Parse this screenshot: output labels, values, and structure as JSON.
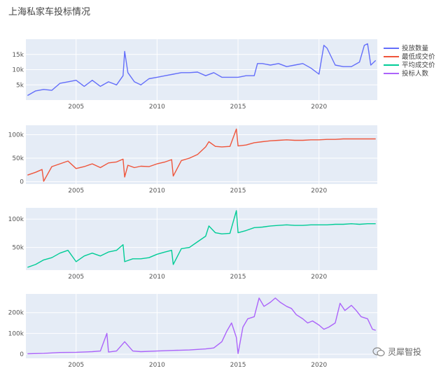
{
  "title": "上海私家车投标情况",
  "watermark": {
    "text": "灵犀智投",
    "icon": "wechat-icon"
  },
  "colors": {
    "plot_bg": "#e5ecf6",
    "grid": "#ffffff",
    "series": [
      "#636efa",
      "#ef553b",
      "#00cc96",
      "#ab63fa"
    ]
  },
  "chart_data": {
    "type": "line",
    "x_range": [
      2001.9,
      2023.6
    ],
    "x_ticks": [
      2005,
      2010,
      2015,
      2020
    ],
    "legend_placement": "top-right",
    "panels": [
      {
        "series": "投放数量",
        "ylim": [
          0,
          20000
        ],
        "y_ticks": [
          5000,
          10000,
          15000
        ],
        "y_tick_labels": [
          "5k",
          "10k",
          "15k"
        ],
        "x": [
          2002.0,
          2002.5,
          2003.0,
          2003.5,
          2004.0,
          2004.5,
          2005.0,
          2005.5,
          2006.0,
          2006.5,
          2007.0,
          2007.5,
          2007.9,
          2008.0,
          2008.2,
          2008.6,
          2009.0,
          2009.5,
          2010.0,
          2010.5,
          2011.0,
          2011.5,
          2012.0,
          2012.5,
          2013.0,
          2013.5,
          2014.0,
          2014.5,
          2015.0,
          2015.5,
          2016.0,
          2016.2,
          2016.5,
          2017.0,
          2017.5,
          2018.0,
          2018.5,
          2019.0,
          2019.5,
          2020.0,
          2020.3,
          2020.5,
          2021.0,
          2021.5,
          2022.0,
          2022.5,
          2022.8,
          2023.0,
          2023.2,
          2023.5
        ],
        "y": [
          1500,
          3000,
          3500,
          3200,
          5500,
          6000,
          6500,
          4500,
          6500,
          4500,
          6000,
          5000,
          8000,
          16000,
          9000,
          6000,
          5000,
          7000,
          7500,
          8000,
          8500,
          9000,
          9000,
          9200,
          8000,
          9000,
          7500,
          7500,
          7500,
          8000,
          8000,
          12000,
          12000,
          11500,
          12000,
          11000,
          11500,
          12000,
          10500,
          8500,
          18000,
          17000,
          11500,
          11000,
          11000,
          12500,
          18000,
          18500,
          11500,
          13000
        ]
      },
      {
        "series": "最低成交价",
        "ylim": [
          -5000,
          120000
        ],
        "y_ticks": [
          0,
          50000,
          100000
        ],
        "y_tick_labels": [
          "0",
          "50k",
          "100k"
        ],
        "x": [
          2002.0,
          2002.5,
          2002.9,
          2003.0,
          2003.5,
          2004.0,
          2004.5,
          2005.0,
          2005.5,
          2006.0,
          2006.5,
          2007.0,
          2007.5,
          2007.9,
          2008.0,
          2008.2,
          2008.6,
          2009.0,
          2009.5,
          2010.0,
          2010.5,
          2010.9,
          2011.0,
          2011.5,
          2012.0,
          2012.5,
          2013.0,
          2013.2,
          2013.6,
          2014.0,
          2014.5,
          2014.9,
          2015.0,
          2015.5,
          2016.0,
          2016.5,
          2017.0,
          2017.5,
          2018.0,
          2018.5,
          2019.0,
          2019.5,
          2020.0,
          2020.5,
          2021.0,
          2021.5,
          2022.0,
          2022.5,
          2023.0,
          2023.5
        ],
        "y": [
          14000,
          20000,
          26000,
          1000,
          32000,
          38000,
          44000,
          28000,
          32000,
          38000,
          30000,
          40000,
          42000,
          48000,
          10000,
          35000,
          30000,
          33000,
          32000,
          38000,
          42000,
          47000,
          12000,
          45000,
          50000,
          58000,
          74000,
          85000,
          75000,
          74000,
          75000,
          112000,
          76000,
          78000,
          83000,
          85000,
          87000,
          88000,
          89000,
          88000,
          88000,
          89000,
          89000,
          90000,
          90000,
          91000,
          91000,
          91000,
          91000,
          91000
        ]
      },
      {
        "series": "平均成交价",
        "ylim": [
          10000,
          120000
        ],
        "y_ticks": [
          50000,
          100000
        ],
        "y_tick_labels": [
          "50k",
          "100k"
        ],
        "x": [
          2002.0,
          2002.5,
          2003.0,
          2003.5,
          2004.0,
          2004.5,
          2005.0,
          2005.5,
          2006.0,
          2006.5,
          2007.0,
          2007.5,
          2007.9,
          2008.0,
          2008.5,
          2009.0,
          2009.5,
          2010.0,
          2010.5,
          2010.9,
          2011.0,
          2011.5,
          2012.0,
          2012.5,
          2013.0,
          2013.2,
          2013.6,
          2014.0,
          2014.5,
          2014.9,
          2015.0,
          2015.5,
          2016.0,
          2016.5,
          2017.0,
          2017.5,
          2018.0,
          2018.5,
          2019.0,
          2019.5,
          2020.0,
          2020.5,
          2021.0,
          2021.5,
          2022.0,
          2022.5,
          2023.0,
          2023.5
        ],
        "y": [
          15000,
          20000,
          28000,
          32000,
          40000,
          45000,
          25000,
          35000,
          40000,
          35000,
          42000,
          45000,
          55000,
          25000,
          30000,
          30000,
          32000,
          38000,
          42000,
          45000,
          20000,
          48000,
          50000,
          60000,
          70000,
          88000,
          76000,
          74000,
          75000,
          115000,
          76000,
          80000,
          85000,
          86000,
          88000,
          89000,
          90000,
          89000,
          89000,
          90000,
          90000,
          90000,
          91000,
          91000,
          92000,
          91000,
          92000,
          92000
        ]
      },
      {
        "series": "投标人数",
        "ylim": [
          -20000,
          290000
        ],
        "y_ticks": [
          0,
          100000,
          200000
        ],
        "y_tick_labels": [
          "0",
          "100k",
          "200k"
        ],
        "x": [
          2002.0,
          2003.0,
          2004.0,
          2005.0,
          2006.0,
          2006.5,
          2006.9,
          2007.0,
          2007.5,
          2008.0,
          2008.5,
          2009.0,
          2010.0,
          2011.0,
          2012.0,
          2013.0,
          2013.5,
          2014.0,
          2014.3,
          2014.6,
          2014.9,
          2015.0,
          2015.3,
          2015.6,
          2016.0,
          2016.3,
          2016.6,
          2017.0,
          2017.3,
          2017.6,
          2018.0,
          2018.3,
          2018.6,
          2019.0,
          2019.3,
          2019.6,
          2020.0,
          2020.3,
          2020.6,
          2021.0,
          2021.3,
          2021.6,
          2022.0,
          2022.3,
          2022.6,
          2023.0,
          2023.3,
          2023.5
        ],
        "y": [
          2000,
          4000,
          8000,
          9000,
          12000,
          15000,
          100000,
          10000,
          15000,
          60000,
          15000,
          12000,
          15000,
          18000,
          20000,
          25000,
          30000,
          60000,
          110000,
          150000,
          80000,
          3000,
          130000,
          170000,
          180000,
          270000,
          230000,
          250000,
          270000,
          250000,
          230000,
          220000,
          190000,
          170000,
          150000,
          160000,
          140000,
          120000,
          130000,
          150000,
          245000,
          210000,
          235000,
          210000,
          180000,
          170000,
          120000,
          115000
        ]
      }
    ]
  }
}
